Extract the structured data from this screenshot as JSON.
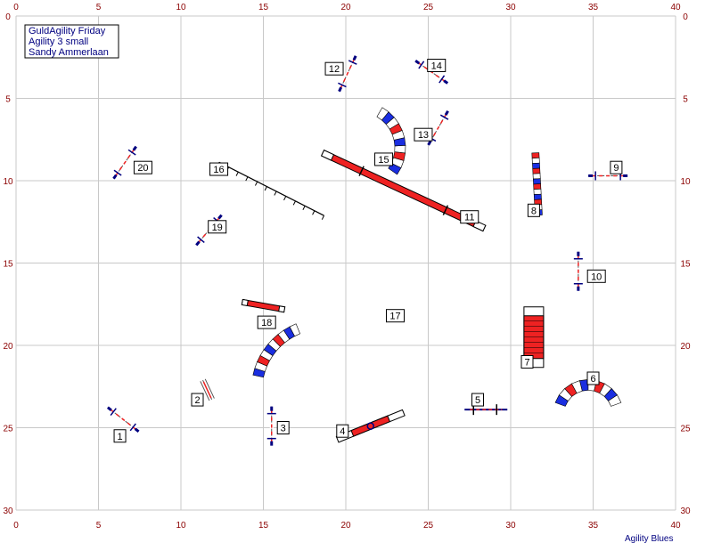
{
  "info": {
    "line1": "GuldAgility Friday",
    "line2": "Agility 3 small",
    "line3": "Sandy Ammerlaan"
  },
  "footer": "Agility Blues",
  "field": {
    "width": 40,
    "height": 30,
    "grid_step": 5
  },
  "axis": {
    "x_ticks": [
      "0",
      "5",
      "10",
      "15",
      "20",
      "25",
      "30",
      "35",
      "40"
    ],
    "y_ticks": [
      "0",
      "5",
      "10",
      "15",
      "20",
      "25",
      "30"
    ]
  },
  "colors": {
    "red": "#ee2222",
    "blue": "#1a2ee0",
    "navy": "#000080",
    "grid": "#c8c8c8",
    "tick": "#8b0000"
  },
  "obstacles": [
    {
      "num": "1",
      "type": "jump",
      "x": 6.5,
      "y": 24.5,
      "angle": 38,
      "label_pos": [
        6.3,
        25.5
      ]
    },
    {
      "num": "2",
      "type": "panel",
      "x": 11.6,
      "y": 22.7,
      "angle": 65,
      "label_pos": [
        11.0,
        23.3
      ]
    },
    {
      "num": "3",
      "type": "jump",
      "x": 15.5,
      "y": 24.9,
      "angle": 90,
      "label_pos": [
        16.2,
        25.0
      ]
    },
    {
      "num": "4",
      "type": "seesaw",
      "x": 21.5,
      "y": 24.9,
      "angle": -22,
      "label_pos": [
        19.8,
        25.2
      ]
    },
    {
      "num": "5",
      "type": "long",
      "x": 28.5,
      "y": 23.9,
      "angle": 0,
      "label_pos": [
        28.0,
        23.3
      ]
    },
    {
      "num": "6",
      "type": "tunnel",
      "cx": 34.7,
      "cy": 24.2,
      "r": 1.8,
      "a0": -70,
      "a1": 70,
      "label_pos": [
        35.0,
        22.0
      ]
    },
    {
      "num": "7",
      "type": "chute",
      "x": 31.4,
      "y": 19.5,
      "label_pos": [
        31.0,
        21.0
      ]
    },
    {
      "num": "8",
      "type": "weave",
      "x": 31.6,
      "y": 10.2,
      "angle": 87,
      "label_pos": [
        31.4,
        11.8
      ]
    },
    {
      "num": "9",
      "type": "jump",
      "x": 35.9,
      "y": 9.7,
      "angle": 0,
      "label_pos": [
        36.4,
        9.2
      ]
    },
    {
      "num": "10",
      "type": "jump",
      "x": 34.1,
      "y": 15.5,
      "angle": 90,
      "label_pos": [
        35.2,
        15.8
      ]
    },
    {
      "num": "11",
      "type": "dogwalk",
      "x": 23.5,
      "y": 10.6,
      "angle": 25,
      "label_pos": [
        27.5,
        12.2
      ]
    },
    {
      "num": "12",
      "type": "jump",
      "x": 20.1,
      "y": 3.5,
      "angle": -65,
      "label_pos": [
        19.3,
        3.2
      ]
    },
    {
      "num": "13",
      "type": "jump",
      "x": 25.6,
      "y": 6.8,
      "angle": -60,
      "label_pos": [
        24.7,
        7.2
      ]
    },
    {
      "num": "14",
      "type": "jump",
      "x": 25.2,
      "y": 3.4,
      "angle": 35,
      "label_pos": [
        25.5,
        3.0
      ]
    },
    {
      "num": "15",
      "type": "tunnel",
      "cx": 20.8,
      "cy": 8.0,
      "r": 2.5,
      "a0": 125,
      "a1": 30,
      "label_pos": [
        22.3,
        8.7
      ]
    },
    {
      "num": "16",
      "type": "table",
      "x": 15.5,
      "y": 10.5,
      "angle": 27,
      "label_pos": [
        12.3,
        9.3
      ]
    },
    {
      "num": "17",
      "type": "tunnel",
      "cx": 18.6,
      "cy": 22.7,
      "r": 4.0,
      "a0": -78,
      "a1": -22,
      "label_pos": [
        23.0,
        18.2
      ]
    },
    {
      "num": "18",
      "type": "seesaw2",
      "x": 15.0,
      "y": 17.6,
      "angle": 10,
      "label_pos": [
        15.2,
        18.6
      ]
    },
    {
      "num": "19",
      "type": "jump",
      "x": 11.7,
      "y": 13.0,
      "angle": -50,
      "label_pos": [
        12.2,
        12.8
      ]
    },
    {
      "num": "20",
      "type": "jump",
      "x": 6.6,
      "y": 8.9,
      "angle": -55,
      "label_pos": [
        7.7,
        9.2
      ]
    }
  ]
}
